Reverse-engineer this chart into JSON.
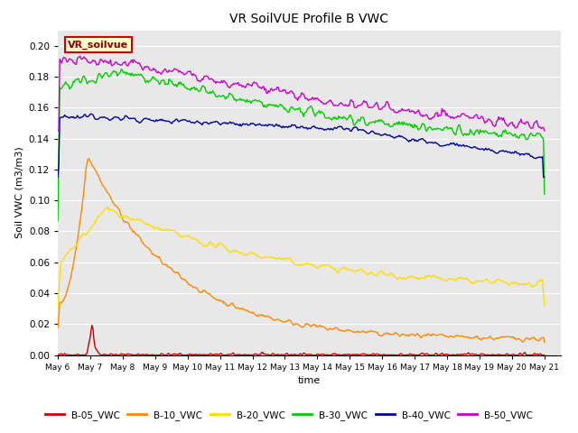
{
  "title": "VR SoilVUE Profile B VWC",
  "xlabel": "time",
  "ylabel": "Soil VWC (m3/m3)",
  "ylim": [
    0.0,
    0.21
  ],
  "background_color": "#e8e8e8",
  "legend_label": "VR_soilvue",
  "series": {
    "B-05_VWC": {
      "color": "#cc0000",
      "lw": 1.0
    },
    "B-10_VWC": {
      "color": "#ff8800",
      "lw": 1.0
    },
    "B-20_VWC": {
      "color": "#ffdd00",
      "lw": 1.0
    },
    "B-30_VWC": {
      "color": "#00cc00",
      "lw": 1.0
    },
    "B-40_VWC": {
      "color": "#000099",
      "lw": 1.0
    },
    "B-50_VWC": {
      "color": "#cc00cc",
      "lw": 1.0
    }
  },
  "yticks": [
    0.0,
    0.02,
    0.04,
    0.06,
    0.08,
    0.1,
    0.12,
    0.14,
    0.16,
    0.18,
    0.2
  ],
  "xtick_labels": [
    "May 6",
    "May 7",
    "May 8",
    "May 9",
    "May 10",
    "May 11",
    "May 12",
    "May 13",
    "May 14",
    "May 15",
    "May 16",
    "May 17",
    "May 18",
    "May 19",
    "May 20",
    "May 21"
  ],
  "num_points": 500
}
